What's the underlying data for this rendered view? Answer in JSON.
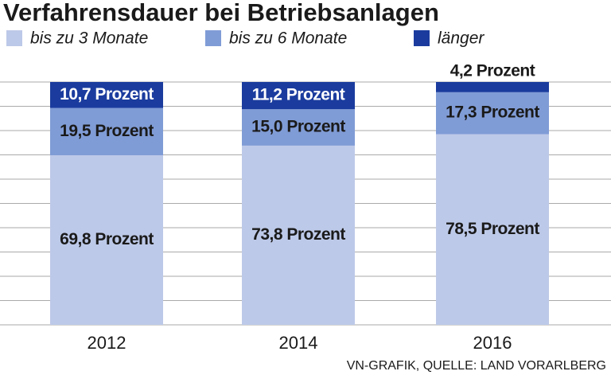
{
  "chart_data": {
    "type": "stacked_bar",
    "title": "Verfahrensdauer bei Betriebsanlagen",
    "source": "VN-GRAFIK, QUELLE: LAND VORARLBERG",
    "categories": [
      "2012",
      "2014",
      "2016"
    ],
    "series": [
      {
        "name": "bis zu 3 Monate",
        "color": "#bdc9e8",
        "values": [
          69.8,
          73.8,
          78.5
        ],
        "value_labels": [
          "69,8 Prozent",
          "73,8 Prozent",
          "78,5 Prozent"
        ]
      },
      {
        "name": "bis zu 6 Monate",
        "color": "#809cd6",
        "values": [
          19.5,
          15.0,
          17.3
        ],
        "value_labels": [
          "19,5 Prozent",
          "15,0 Prozent",
          "17,3 Prozent"
        ]
      },
      {
        "name": "länger",
        "color": "#1b3c9e",
        "values": [
          10.7,
          11.2,
          4.2
        ],
        "value_labels": [
          "10,7 Prozent",
          "11,2 Prozent",
          "4,2 Prozent"
        ]
      }
    ],
    "ylim": [
      0,
      100
    ],
    "gridlines": [
      0,
      10,
      20,
      30,
      40,
      50,
      60,
      70,
      80,
      90,
      100
    ],
    "grid": true
  }
}
